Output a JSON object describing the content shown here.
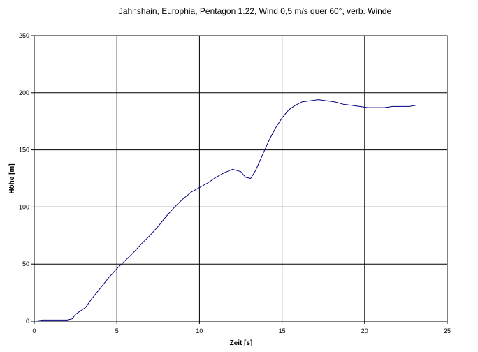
{
  "chart_data": {
    "type": "line",
    "title": "Jahnshain, Europhia, Pentagon 1.22, Wind 0,5 m/s quer 60°, verb. Winde",
    "xlabel": "Zeit [s]",
    "ylabel": "Höhe [m]",
    "xlim": [
      0,
      25
    ],
    "ylim": [
      0,
      250
    ],
    "xticks": [
      "0",
      "5",
      "10",
      "15",
      "20",
      "25"
    ],
    "yticks": [
      "0",
      "50",
      "100",
      "150",
      "200",
      "250"
    ],
    "grid": true,
    "legend": "none",
    "line_color": "#000080",
    "series": [
      {
        "x": [
          0,
          0.5,
          1,
          1.5,
          2,
          2.3,
          2.5,
          2.8,
          3.1,
          3.5,
          4,
          4.5,
          5,
          5.5,
          6,
          6.5,
          7,
          7.5,
          8,
          8.5,
          9,
          9.5,
          10,
          10.5,
          11,
          11.5,
          12,
          12.5,
          12.8,
          13.1,
          13.4,
          13.8,
          14.2,
          14.6,
          15,
          15.4,
          15.8,
          16.2,
          16.7,
          17.2,
          17.7,
          18.2,
          18.7,
          19.2,
          19.7,
          20.2,
          20.7,
          21.2,
          21.7,
          22.2,
          22.7,
          23.1
        ],
        "y": [
          0,
          1,
          1,
          1,
          1,
          2,
          6,
          9,
          12,
          20,
          29,
          38,
          46,
          53,
          60,
          68,
          75,
          83,
          92,
          100,
          107,
          113,
          117,
          121,
          126,
          130,
          133,
          131,
          126,
          125,
          132,
          145,
          158,
          169,
          178,
          185,
          189,
          192,
          193,
          194,
          193,
          192,
          190,
          189,
          188,
          187,
          187,
          187,
          188,
          188,
          188,
          189
        ]
      }
    ]
  }
}
